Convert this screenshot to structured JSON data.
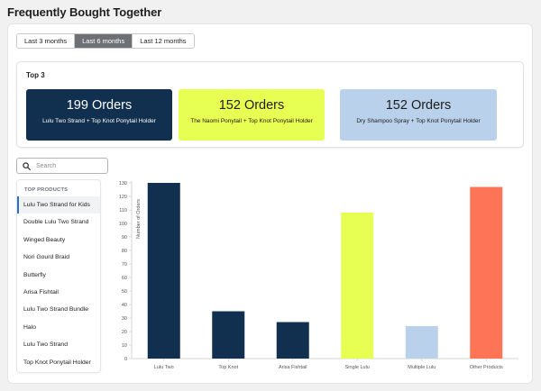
{
  "page": {
    "title": "Frequently Bought Together"
  },
  "tabs": [
    {
      "label": "Last 3 months",
      "active": false
    },
    {
      "label": "Last 6 months",
      "active": true
    },
    {
      "label": "Last 12 months",
      "active": false
    }
  ],
  "top3": {
    "title": "Top 3",
    "cards": [
      {
        "value": "199 Orders",
        "label": "Lulu Two Strand + Top Knot Ponytail Holder",
        "bg": "#11304f",
        "fg": "#ffffff"
      },
      {
        "value": "152 Orders",
        "label": "The Naomi Ponytail + Top Knot Ponytail Holder",
        "bg": "#e7fe52",
        "fg": "#1d1d1d"
      },
      {
        "value": "152 Orders",
        "label": "Dry Shampoo Spray + Top Knot Ponytail Holder",
        "bg": "#b9d1ea",
        "fg": "#1d1d1d"
      }
    ]
  },
  "search": {
    "placeholder": "Search",
    "icon": "search-icon"
  },
  "products": {
    "header": "TOP PRODUCTS",
    "items": [
      {
        "label": "Lulu Two Strand for Kids",
        "active": true
      },
      {
        "label": "Double Lulu Two Strand",
        "active": false
      },
      {
        "label": "Winged Beauty",
        "active": false
      },
      {
        "label": "Nori Gourd Braid",
        "active": false
      },
      {
        "label": "Butterfly",
        "active": false
      },
      {
        "label": "Arisa Fishtail",
        "active": false
      },
      {
        "label": "Lulu Two Strand Bundle",
        "active": false
      },
      {
        "label": "Halo",
        "active": false
      },
      {
        "label": "Lulu Two Strand",
        "active": false
      },
      {
        "label": "Top Knot Ponytail Holder",
        "active": false
      }
    ]
  },
  "chart_data": {
    "type": "bar",
    "ylabel": "Number of Orders",
    "ylim": [
      0,
      130
    ],
    "yticks": [
      0,
      10,
      20,
      30,
      40,
      50,
      60,
      70,
      80,
      90,
      100,
      110,
      120,
      130
    ],
    "categories": [
      "Lulu Two",
      "Top Knot",
      "Arisa Fishtail",
      "Single Lulu",
      "Multiple Lulu",
      "Other Products"
    ],
    "values": [
      130,
      35,
      27,
      108,
      24,
      127
    ],
    "colors": [
      "#11304f",
      "#11304f",
      "#11304f",
      "#e7fe52",
      "#b9d1ea",
      "#fd7556"
    ]
  }
}
